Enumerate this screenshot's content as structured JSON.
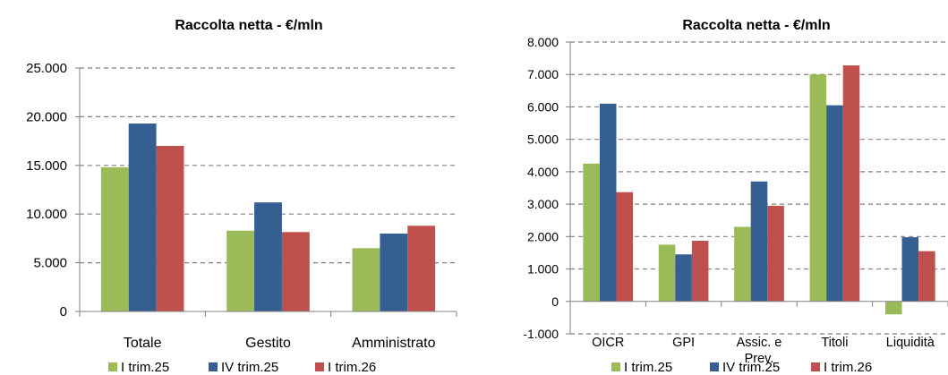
{
  "chart_data": [
    {
      "type": "bar",
      "title": "Raccolta netta - €/mln",
      "categories": [
        "Totale",
        "Gestito",
        "Amministrato"
      ],
      "series": [
        {
          "name": "I trim.25",
          "color": "#9BBB59",
          "values": [
            14800,
            8300,
            6500
          ]
        },
        {
          "name": "IV trim.25",
          "color": "#365F91",
          "values": [
            19300,
            11200,
            8000
          ]
        },
        {
          "name": "I trim.26",
          "color": "#C0504D",
          "values": [
            17000,
            8150,
            8800
          ]
        }
      ],
      "ylim": [
        0,
        25000
      ],
      "yticks": [
        "0",
        "5.000",
        "10.000",
        "15.000",
        "20.000",
        "25.000"
      ],
      "ytick_values": [
        0,
        5000,
        10000,
        15000,
        20000,
        25000
      ],
      "grid": true,
      "legend": "bottom"
    },
    {
      "type": "bar",
      "title": "Raccolta netta - €/mln",
      "categories": [
        "OICR",
        "GPI",
        "Assic. e\nPrev.",
        "Titoli",
        "Liquidità"
      ],
      "series": [
        {
          "name": "I trim.25",
          "color": "#9BBB59",
          "values": [
            4250,
            1750,
            2300,
            7000,
            -400
          ]
        },
        {
          "name": "IV trim.25",
          "color": "#365F91",
          "values": [
            6100,
            1450,
            3700,
            6050,
            1980
          ]
        },
        {
          "name": "I trim.26",
          "color": "#C0504D",
          "values": [
            3370,
            1870,
            2950,
            7280,
            1550
          ]
        }
      ],
      "ylim": [
        -1000,
        8000
      ],
      "yticks": [
        "-1.000",
        "0",
        "1.000",
        "2.000",
        "3.000",
        "4.000",
        "5.000",
        "6.000",
        "7.000",
        "8.000"
      ],
      "ytick_values": [
        -1000,
        0,
        1000,
        2000,
        3000,
        4000,
        5000,
        6000,
        7000,
        8000
      ],
      "grid": true,
      "legend": "bottom"
    }
  ]
}
